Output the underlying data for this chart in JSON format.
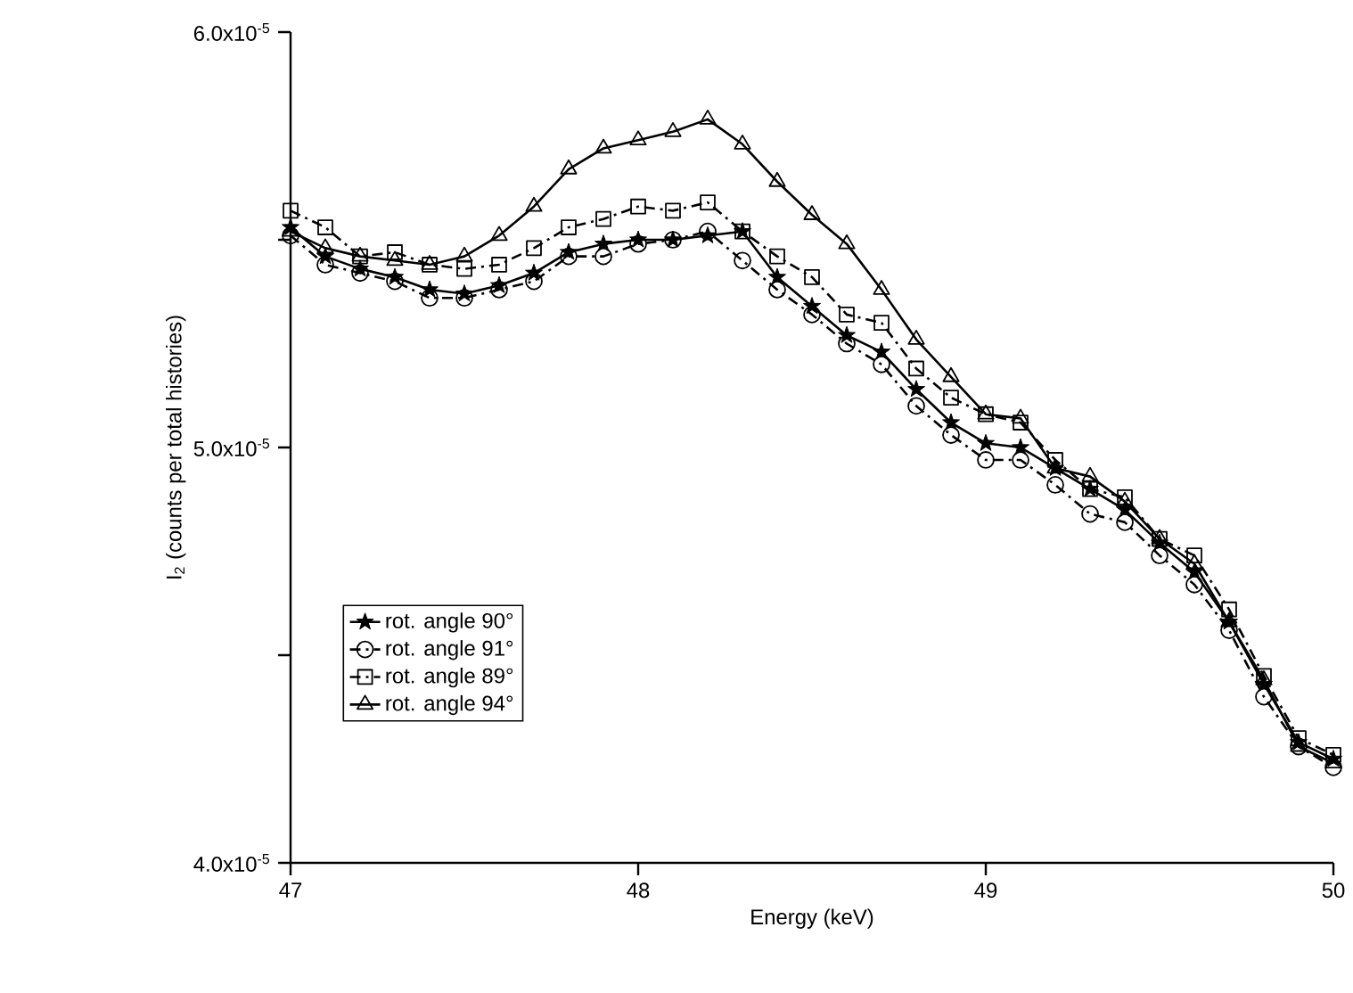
{
  "chart_data": {
    "type": "line",
    "xlabel": "Energy (keV)",
    "ylabel": "I$_{2}$ (counts per total histories)",
    "x": [
      47.0,
      47.1,
      47.2,
      47.3,
      47.4,
      47.5,
      47.6,
      47.7,
      47.8,
      47.9,
      48.0,
      48.1,
      48.2,
      48.3,
      48.4,
      48.5,
      48.6,
      48.7,
      48.8,
      48.9,
      49.0,
      49.1,
      49.2,
      49.3,
      49.4,
      49.5,
      49.6,
      49.7,
      49.8,
      49.9,
      50.0
    ],
    "xlim": [
      47,
      50
    ],
    "xticks": [
      47,
      48,
      49,
      50
    ],
    "ylim": [
      4e-05,
      6e-05
    ],
    "yticks": [
      {
        "value": 4e-05,
        "label": "4.0x10$^{-5}$"
      },
      {
        "value": 4.5e-05,
        "label": null
      },
      {
        "value": 5e-05,
        "label": "5.0x10$^{-5}$"
      },
      {
        "value": 5.5e-05,
        "label": null
      },
      {
        "value": 6e-05,
        "label": "6.0x10$^{-5}$"
      }
    ],
    "legend": "left",
    "grid": false,
    "series": [
      {
        "name": "rot. angle 90°",
        "color": "#000000",
        "marker": "star",
        "line_style": "solid",
        "values": [
          5.53e-05,
          5.46e-05,
          5.43e-05,
          5.41e-05,
          5.38e-05,
          5.37e-05,
          5.39e-05,
          5.42e-05,
          5.47e-05,
          5.49e-05,
          5.5e-05,
          5.5e-05,
          5.51e-05,
          5.52e-05,
          5.41e-05,
          5.34e-05,
          5.27e-05,
          5.23e-05,
          5.14e-05,
          5.06e-05,
          5.01e-05,
          5e-05,
          4.95e-05,
          4.9e-05,
          4.85e-05,
          4.77e-05,
          4.7e-05,
          4.58e-05,
          4.43e-05,
          4.29e-05,
          4.25e-05
        ]
      },
      {
        "name": "rot. angle 91°",
        "color": "#000000",
        "marker": "circle",
        "line_style": "dashed",
        "values": [
          5.51e-05,
          5.44e-05,
          5.42e-05,
          5.4e-05,
          5.36e-05,
          5.36e-05,
          5.38e-05,
          5.4e-05,
          5.46e-05,
          5.46e-05,
          5.49e-05,
          5.5e-05,
          5.52e-05,
          5.45e-05,
          5.38e-05,
          5.32e-05,
          5.25e-05,
          5.2e-05,
          5.1e-05,
          5.03e-05,
          4.97e-05,
          4.97e-05,
          4.91e-05,
          4.84e-05,
          4.82e-05,
          4.74e-05,
          4.67e-05,
          4.56e-05,
          4.4e-05,
          4.28e-05,
          4.23e-05
        ]
      },
      {
        "name": "rot. angle 89°",
        "color": "#000000",
        "marker": "square",
        "line_style": "dashed",
        "values": [
          5.57e-05,
          5.53e-05,
          5.46e-05,
          5.47e-05,
          5.44e-05,
          5.43e-05,
          5.44e-05,
          5.48e-05,
          5.53e-05,
          5.55e-05,
          5.58e-05,
          5.57e-05,
          5.59e-05,
          5.52e-05,
          5.46e-05,
          5.41e-05,
          5.32e-05,
          5.3e-05,
          5.19e-05,
          5.12e-05,
          5.08e-05,
          5.06e-05,
          4.97e-05,
          4.9e-05,
          4.88e-05,
          4.78e-05,
          4.74e-05,
          4.61e-05,
          4.45e-05,
          4.3e-05,
          4.26e-05
        ]
      },
      {
        "name": "rot. angle 94°",
        "color": "#000000",
        "marker": "triangle",
        "line_style": "solid",
        "values": [
          5.52e-05,
          5.48e-05,
          5.46e-05,
          5.45e-05,
          5.44e-05,
          5.46e-05,
          5.51e-05,
          5.58e-05,
          5.67e-05,
          5.72e-05,
          5.74e-05,
          5.76e-05,
          5.79e-05,
          5.73e-05,
          5.64e-05,
          5.56e-05,
          5.49e-05,
          5.38e-05,
          5.26e-05,
          5.17e-05,
          5.08e-05,
          5.07e-05,
          4.95e-05,
          4.93e-05,
          4.87e-05,
          4.78e-05,
          4.72e-05,
          4.58e-05,
          4.44e-05,
          4.28e-05,
          4.24e-05
        ]
      }
    ]
  }
}
